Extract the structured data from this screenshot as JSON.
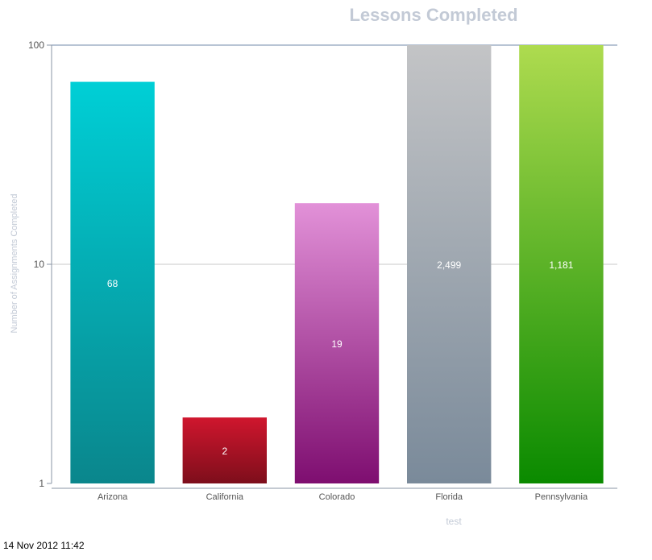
{
  "chart_data": {
    "type": "bar",
    "title": "Lessons Completed",
    "xlabel": "test",
    "ylabel": "Number of Assignments Completed",
    "yscale": "log",
    "ylim": [
      1,
      100
    ],
    "yticks": [
      1,
      10,
      100
    ],
    "ytick_labels": [
      "1",
      "10",
      "100"
    ],
    "grid": true,
    "legend": "none",
    "categories": [
      "Arizona",
      "California",
      "Colorado",
      "Florida",
      "Pennsylvania"
    ],
    "values": [
      68,
      2,
      19,
      2499,
      1181
    ],
    "data_labels": [
      "68",
      "2",
      "19",
      "2,499",
      "1,181"
    ],
    "colors": [
      {
        "top": "#00cfd6",
        "bottom": "#0a868c"
      },
      {
        "top": "#d0162e",
        "bottom": "#7d0e1b"
      },
      {
        "top": "#e291d8",
        "bottom": "#7e0e70"
      },
      {
        "top": "#c3c4c6",
        "bottom": "#7a8a9a"
      },
      {
        "top": "#aedb4f",
        "bottom": "#0a8a00"
      }
    ]
  },
  "footer": {
    "timestamp": "14 Nov 2012 11:42"
  }
}
